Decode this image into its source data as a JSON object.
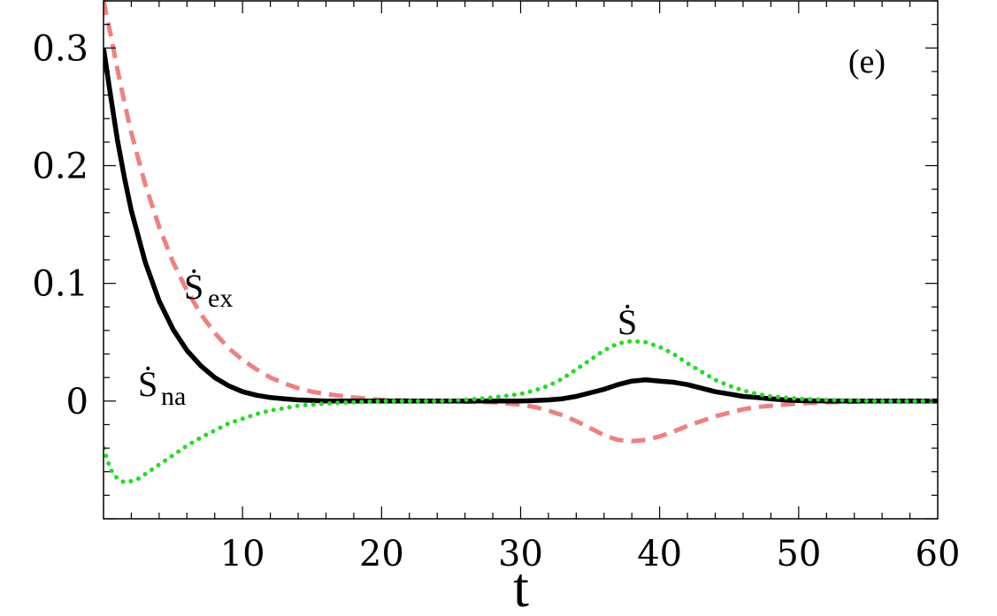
{
  "chart_data": {
    "type": "line",
    "panel_label": "(e)",
    "xlabel": "t",
    "ylabel": "",
    "xlim": [
      0,
      60
    ],
    "ylim": [
      -0.1,
      0.34
    ],
    "x_ticks": [
      10,
      20,
      30,
      40,
      50,
      60
    ],
    "x_tick_labels": [
      "10",
      "20",
      "30",
      "40",
      "50",
      "60"
    ],
    "y_ticks": [
      0,
      0.1,
      0.2,
      0.3
    ],
    "y_tick_labels": [
      "0",
      "0.1",
      "0.2",
      "0.3"
    ],
    "grid": false,
    "colors": {
      "S_na": "#000000",
      "S_ex": "#f08080",
      "S": "#22dd22"
    },
    "series": [
      {
        "key": "S_ex",
        "name": "Ṡ",
        "subscript": "ex",
        "style": "dashed",
        "x": [
          0,
          0.5,
          1,
          1.5,
          2,
          3,
          4,
          5,
          6,
          7,
          8,
          9,
          10,
          11,
          12,
          13,
          14,
          15,
          16,
          18,
          20,
          22,
          24,
          26,
          28,
          30,
          31,
          32,
          33,
          34,
          35,
          36,
          37,
          38,
          39,
          40,
          41,
          42,
          43,
          44,
          45,
          46,
          47,
          48,
          49,
          50,
          52,
          54,
          56,
          58,
          60
        ],
        "y": [
          0.34,
          0.312,
          0.282,
          0.254,
          0.228,
          0.184,
          0.148,
          0.118,
          0.094,
          0.074,
          0.058,
          0.045,
          0.035,
          0.027,
          0.02,
          0.015,
          0.011,
          0.008,
          0.006,
          0.003,
          0.001,
          0.0005,
          0.0,
          -0.0005,
          -0.001,
          -0.003,
          -0.005,
          -0.008,
          -0.012,
          -0.017,
          -0.023,
          -0.029,
          -0.033,
          -0.034,
          -0.033,
          -0.03,
          -0.026,
          -0.021,
          -0.017,
          -0.013,
          -0.01,
          -0.007,
          -0.005,
          -0.004,
          -0.003,
          -0.002,
          -0.001,
          -0.0005,
          0.0,
          0.0,
          0.0
        ]
      },
      {
        "key": "S_na",
        "name": "Ṡ",
        "subscript": "na",
        "style": "solid",
        "x": [
          0,
          0.5,
          1,
          1.5,
          2,
          3,
          4,
          5,
          6,
          7,
          8,
          9,
          10,
          11,
          12,
          13,
          14,
          16,
          18,
          20,
          22,
          24,
          26,
          28,
          30,
          31,
          32,
          33,
          34,
          35,
          36,
          37,
          38,
          39,
          40,
          41,
          42,
          43,
          44,
          45,
          46,
          47,
          48,
          49,
          50,
          52,
          54,
          56,
          58,
          60
        ],
        "y": [
          0.3,
          0.26,
          0.222,
          0.19,
          0.162,
          0.118,
          0.085,
          0.061,
          0.043,
          0.03,
          0.02,
          0.013,
          0.008,
          0.005,
          0.003,
          0.002,
          0.001,
          0.0,
          0.0,
          0.0,
          0.0,
          0.0,
          0.0,
          0.0,
          0.0,
          0.0005,
          0.001,
          0.002,
          0.004,
          0.007,
          0.01,
          0.014,
          0.017,
          0.018,
          0.017,
          0.016,
          0.014,
          0.011,
          0.008,
          0.006,
          0.004,
          0.003,
          0.002,
          0.001,
          0.0005,
          0.0,
          0.0,
          0.0,
          0.0,
          0.0
        ]
      },
      {
        "key": "S",
        "name": "Ṡ",
        "subscript": "",
        "style": "dotted",
        "x": [
          0,
          0.5,
          1,
          1.5,
          2,
          2.5,
          3,
          4,
          5,
          6,
          7,
          8,
          9,
          10,
          11,
          12,
          13,
          14,
          15,
          16,
          18,
          20,
          22,
          24,
          26,
          28,
          30,
          31,
          32,
          33,
          34,
          35,
          36,
          37,
          38,
          39,
          40,
          41,
          42,
          43,
          44,
          45,
          46,
          47,
          48,
          49,
          50,
          52,
          54,
          56,
          58,
          60
        ],
        "y": [
          -0.04,
          -0.058,
          -0.066,
          -0.069,
          -0.068,
          -0.066,
          -0.062,
          -0.054,
          -0.046,
          -0.038,
          -0.031,
          -0.025,
          -0.019,
          -0.015,
          -0.011,
          -0.008,
          -0.006,
          -0.004,
          -0.003,
          -0.002,
          -0.001,
          0.0,
          0.0,
          0.0,
          0.001,
          0.003,
          0.006,
          0.009,
          0.013,
          0.019,
          0.027,
          0.035,
          0.043,
          0.049,
          0.051,
          0.05,
          0.046,
          0.04,
          0.032,
          0.025,
          0.018,
          0.013,
          0.009,
          0.006,
          0.004,
          0.003,
          0.002,
          0.001,
          0.0005,
          0.0,
          0.0,
          0.0
        ]
      }
    ],
    "annotations": [
      {
        "series": "S_ex",
        "text": "Ṡ",
        "subscript": "ex"
      },
      {
        "series": "S_na",
        "text": "Ṡ",
        "subscript": "na"
      },
      {
        "series": "S",
        "text": "Ṡ",
        "subscript": ""
      }
    ]
  }
}
